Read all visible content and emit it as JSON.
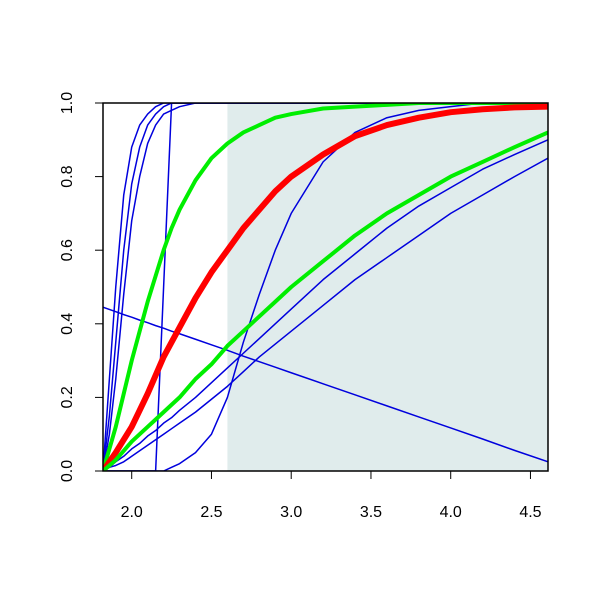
{
  "chart_data": {
    "type": "line",
    "x": [
      1.82,
      1.86,
      1.9,
      1.95,
      2.0,
      2.05,
      2.1,
      2.15,
      2.2,
      2.25,
      2.3,
      2.4,
      2.5,
      2.6,
      2.7,
      2.8,
      2.9,
      3.0,
      3.2,
      3.4,
      3.6,
      3.8,
      4.0,
      4.2,
      4.4,
      4.61
    ],
    "xlim": [
      1.82,
      4.61
    ],
    "ylim": [
      0,
      1
    ],
    "xticks": [
      {
        "value": 2,
        "label": "2.0"
      },
      2.5,
      {
        "value": 3,
        "label": "3.0"
      },
      3.5,
      {
        "value": 4,
        "label": "4.0"
      },
      4.5
    ],
    "yticks": [
      {
        "value": 0,
        "label": "0.0"
      },
      0.2,
      0.4,
      0.6,
      0.8,
      {
        "value": 1,
        "label": "1.0"
      }
    ],
    "shade": {
      "from": 2.6,
      "to": 4.61,
      "color": "#e0ecec"
    },
    "series": [
      {
        "color": "#0000dd",
        "line_width": 1.5,
        "values": [
          0,
          0.25,
          0.5,
          0.75,
          0.88,
          0.94,
          0.97,
          0.99,
          1,
          1,
          1,
          1,
          1,
          1,
          1,
          1,
          1,
          1,
          1,
          1,
          1,
          1,
          1,
          1,
          1,
          1
        ]
      },
      {
        "color": "#0000dd",
        "line_width": 1.5,
        "values": [
          0,
          0.15,
          0.35,
          0.6,
          0.78,
          0.88,
          0.94,
          0.97,
          0.99,
          1,
          1,
          1,
          1,
          1,
          1,
          1,
          1,
          1,
          1,
          1,
          1,
          1,
          1,
          1,
          1,
          1
        ]
      },
      {
        "color": "#0000dd",
        "line_width": 1.5,
        "values": [
          0,
          0.1,
          0.25,
          0.48,
          0.68,
          0.8,
          0.89,
          0.94,
          0.97,
          0.98,
          0.99,
          1,
          1,
          1,
          1,
          1,
          1,
          1,
          1,
          1,
          1,
          1,
          1,
          1,
          1,
          1
        ]
      },
      {
        "color": "#0000dd",
        "line_width": 1.5,
        "values": [
          0,
          0,
          0,
          0,
          0,
          0,
          0,
          0,
          0.5,
          1,
          1,
          1,
          1,
          1,
          1,
          1,
          1,
          1,
          1,
          1,
          1,
          1,
          1,
          1,
          1,
          1
        ]
      },
      {
        "color": "#0000dd",
        "line_width": 1.5,
        "values": [
          0,
          0,
          0,
          0,
          0,
          0,
          0,
          0,
          0,
          0.01,
          0.02,
          0.05,
          0.1,
          0.2,
          0.35,
          0.48,
          0.6,
          0.7,
          0.84,
          0.92,
          0.96,
          0.98,
          0.99,
          1,
          1,
          1
        ]
      },
      {
        "color": "#0000dd",
        "line_width": 1.5,
        "values": [
          0,
          0.01,
          0.025,
          0.04,
          0.06,
          0.075,
          0.095,
          0.11,
          0.13,
          0.145,
          0.165,
          0.2,
          0.24,
          0.28,
          0.32,
          0.36,
          0.4,
          0.44,
          0.52,
          0.59,
          0.66,
          0.72,
          0.77,
          0.82,
          0.86,
          0.9
        ]
      },
      {
        "color": "#0000dd",
        "line_width": 1.5,
        "values": [
          0,
          0.01,
          0.015,
          0.025,
          0.04,
          0.055,
          0.07,
          0.085,
          0.1,
          0.115,
          0.13,
          0.16,
          0.195,
          0.23,
          0.27,
          0.31,
          0.345,
          0.38,
          0.45,
          0.52,
          0.58,
          0.64,
          0.7,
          0.75,
          0.8,
          0.85
        ]
      },
      {
        "color": "#0000dd",
        "line_width": 1.5,
        "values": [
          0.445,
          0.439,
          0.433,
          0.425,
          0.418,
          0.41,
          0.403,
          0.395,
          0.388,
          0.38,
          0.373,
          0.358,
          0.343,
          0.328,
          0.312,
          0.297,
          0.282,
          0.267,
          0.237,
          0.207,
          0.177,
          0.147,
          0.117,
          0.087,
          0.056,
          0.025
        ]
      },
      {
        "color": "#00ee00",
        "line_width": 4,
        "values": [
          0,
          0.06,
          0.12,
          0.21,
          0.3,
          0.38,
          0.46,
          0.53,
          0.6,
          0.66,
          0.71,
          0.79,
          0.85,
          0.89,
          0.92,
          0.94,
          0.96,
          0.97,
          0.985,
          0.99,
          0.995,
          1,
          1,
          1,
          1,
          1
        ]
      },
      {
        "color": "#ff0000",
        "line_width": 6,
        "values": [
          0,
          0.025,
          0.05,
          0.085,
          0.12,
          0.165,
          0.21,
          0.26,
          0.31,
          0.35,
          0.39,
          0.47,
          0.54,
          0.6,
          0.66,
          0.71,
          0.76,
          0.8,
          0.86,
          0.91,
          0.94,
          0.96,
          0.975,
          0.983,
          0.988,
          0.99
        ]
      },
      {
        "color": "#00ee00",
        "line_width": 4,
        "values": [
          0,
          0.015,
          0.03,
          0.055,
          0.08,
          0.1,
          0.12,
          0.14,
          0.16,
          0.18,
          0.2,
          0.25,
          0.29,
          0.34,
          0.38,
          0.42,
          0.46,
          0.5,
          0.57,
          0.64,
          0.7,
          0.75,
          0.8,
          0.84,
          0.88,
          0.92
        ]
      }
    ]
  }
}
